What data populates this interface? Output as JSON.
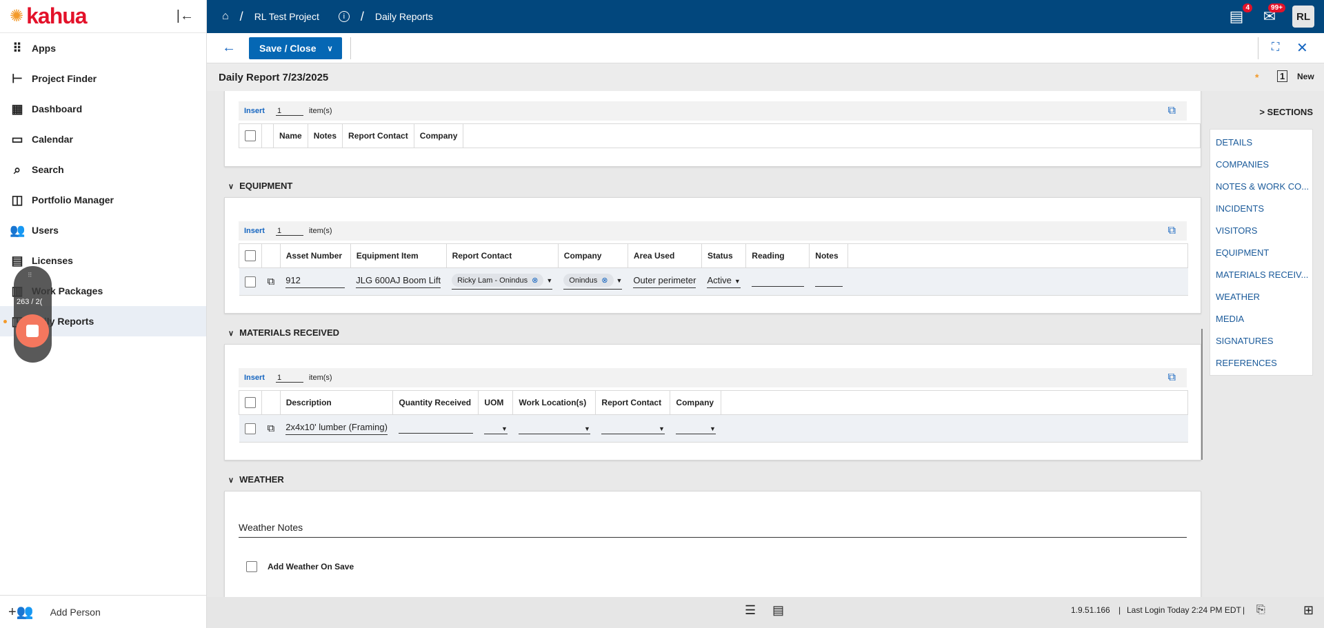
{
  "app": {
    "logo_text": "kahua"
  },
  "sidebar": {
    "items": [
      {
        "label": "Apps",
        "icon": "grid-icon",
        "glyph": "⠿"
      },
      {
        "label": "Project Finder",
        "icon": "tree-icon",
        "glyph": "⊢"
      },
      {
        "label": "Dashboard",
        "icon": "dashboard-icon",
        "glyph": "▦"
      },
      {
        "label": "Calendar",
        "icon": "calendar-icon",
        "glyph": "▭"
      },
      {
        "label": "Search",
        "icon": "search-icon",
        "glyph": "⌕"
      },
      {
        "label": "Portfolio Manager",
        "icon": "portfolio-icon",
        "glyph": "◫"
      },
      {
        "label": "Users",
        "icon": "users-icon",
        "glyph": "👥"
      },
      {
        "label": "Licenses",
        "icon": "license-icon",
        "glyph": "▤"
      },
      {
        "label": "Work Packages",
        "icon": "work-packages-icon",
        "glyph": "▥"
      },
      {
        "label": "Daily Reports",
        "icon": "daily-reports-icon",
        "glyph": "◳",
        "active": true
      }
    ],
    "add_person": "Add Person"
  },
  "breadcrumb": {
    "project": "RL Test Project",
    "app": "Daily Reports",
    "sep": "/"
  },
  "header": {
    "tasks_badge": "4",
    "mail_badge": "99+",
    "avatar": "RL"
  },
  "toolbar": {
    "save_close": "Save / Close"
  },
  "title": {
    "text": "Daily Report 7/23/2025",
    "new_label": "New",
    "count": "1"
  },
  "insert": {
    "label": "Insert",
    "qty": "1",
    "unit": "item(s)"
  },
  "visitors": {
    "columns": [
      "Name",
      "Notes",
      "Report Contact",
      "Company"
    ]
  },
  "equipment": {
    "title": "EQUIPMENT",
    "columns": [
      "Asset Number",
      "Equipment Item",
      "Report Contact",
      "Company",
      "Area Used",
      "Status",
      "Reading",
      "Notes"
    ],
    "row": {
      "asset_number": "912",
      "equipment_item": "JLG 600AJ Boom Lift",
      "report_contact": "Ricky Lam - Onindus",
      "company": "Onindus",
      "area_used": "Outer perimeter",
      "status": "Active",
      "reading": "",
      "notes": ""
    }
  },
  "materials": {
    "title": "MATERIALS RECEIVED",
    "columns": [
      "Description",
      "Quantity Received",
      "UOM",
      "Work Location(s)",
      "Report Contact",
      "Company"
    ],
    "row": {
      "description": "2x4x10' lumber (Framing)",
      "quantity": "",
      "uom": "",
      "work_location": "",
      "report_contact": "",
      "company": ""
    }
  },
  "weather": {
    "title": "WEATHER",
    "notes_label": "Weather Notes",
    "add_on_save": "Add Weather On Save"
  },
  "sections": {
    "title": "> SECTIONS",
    "items": [
      "DETAILS",
      "COMPANIES",
      "NOTES & WORK CO...",
      "INCIDENTS",
      "VISITORS",
      "EQUIPMENT",
      "MATERIALS RECEIV...",
      "WEATHER",
      "MEDIA",
      "SIGNATURES",
      "REFERENCES"
    ]
  },
  "footer": {
    "version": "1.9.51.166",
    "last_login": "Last Login Today 2:24 PM EDT"
  },
  "recorder": {
    "counter": "263 / 2("
  },
  "colors": {
    "topbar": "#02477d",
    "accent": "#0567b4",
    "brand_red": "#e3122a",
    "badge": "#e3122a"
  }
}
